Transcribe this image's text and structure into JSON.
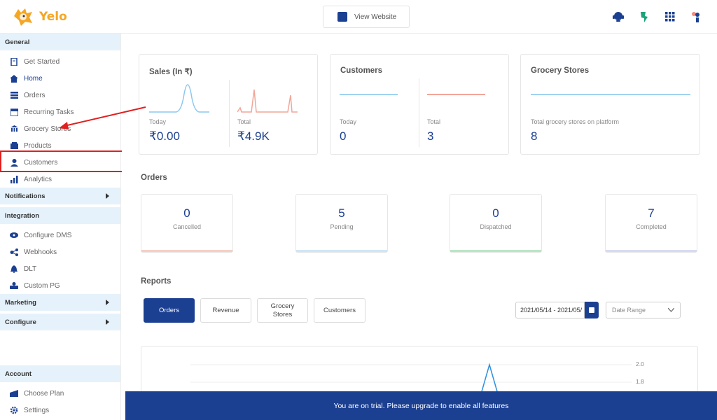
{
  "brand": {
    "name": "Yelo",
    "color": "#f5a623"
  },
  "header": {
    "view_website": "View Website",
    "icons": [
      "support-icon",
      "leaf-icon",
      "apps-grid-icon",
      "user-status-icon"
    ]
  },
  "sidebar": {
    "general": "General",
    "items": [
      {
        "label": "Get Started",
        "icon": "document-icon"
      },
      {
        "label": "Home",
        "icon": "home-icon"
      },
      {
        "label": "Orders",
        "icon": "orders-icon"
      },
      {
        "label": "Recurring Tasks",
        "icon": "calendar-icon"
      },
      {
        "label": "Grocery Stores",
        "icon": "store-icon"
      },
      {
        "label": "Products",
        "icon": "products-icon"
      },
      {
        "label": "Customers",
        "icon": "customers-icon"
      },
      {
        "label": "Analytics",
        "icon": "analytics-icon"
      }
    ],
    "notifications": "Notifications",
    "integration": "Integration",
    "integration_items": [
      {
        "label": "Configure DMS",
        "icon": "dms-icon"
      },
      {
        "label": "Webhooks",
        "icon": "webhooks-icon"
      },
      {
        "label": "DLT",
        "icon": "bell-icon"
      },
      {
        "label": "Custom PG",
        "icon": "payment-icon"
      }
    ],
    "marketing": "Marketing",
    "configure": "Configure",
    "account": "Account",
    "account_items": [
      {
        "label": "Choose Plan",
        "icon": "plan-icon"
      },
      {
        "label": "Settings",
        "icon": "settings-icon"
      }
    ]
  },
  "sales": {
    "title": "Sales (In ₹)",
    "today_label": "Today",
    "today_value": "₹0.00",
    "total_label": "Total",
    "total_value": "₹4.9K"
  },
  "customers": {
    "title": "Customers",
    "today_label": "Today",
    "today_value": "0",
    "total_label": "Total",
    "total_value": "3"
  },
  "stores": {
    "title": "Grocery Stores",
    "label": "Total grocery stores on platform",
    "value": "8"
  },
  "orders": {
    "title": "Orders",
    "cards": [
      {
        "value": "0",
        "label": "Cancelled",
        "color": "#f7cfc4"
      },
      {
        "value": "5",
        "label": "Pending",
        "color": "#cfe6f7"
      },
      {
        "value": "0",
        "label": "Dispatched",
        "color": "#b9e6c4"
      },
      {
        "value": "7",
        "label": "Completed",
        "color": "#d7dcf2"
      }
    ]
  },
  "reports": {
    "title": "Reports",
    "tabs": [
      "Orders",
      "Revenue",
      "Grocery\nStores",
      "Customers"
    ],
    "date_range": "2021/05/14 - 2021/05/",
    "range_placeholder": "Date Range",
    "chart_ticks": [
      "2.0",
      "1.8"
    ]
  },
  "trial_banner": "You are on trial. Please upgrade to enable all features",
  "colors": {
    "primary": "#1b3f91",
    "sidebar_head": "#e6f2fb",
    "annotation": "#e02020"
  }
}
